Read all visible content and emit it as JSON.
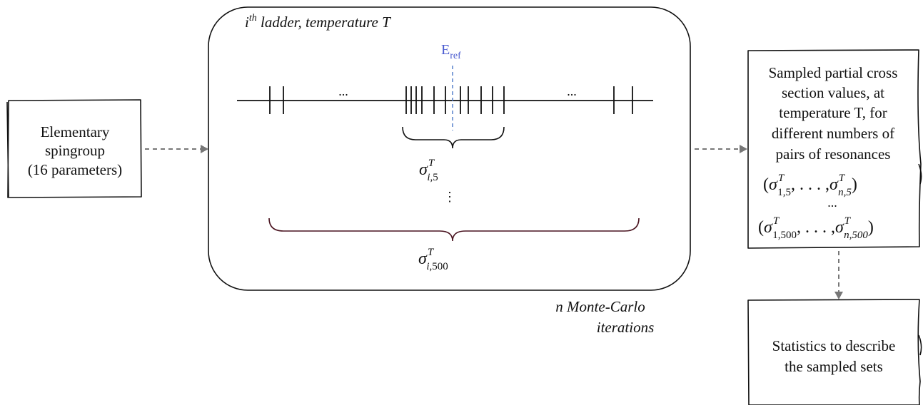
{
  "left_box": {
    "lines": [
      "Elementary",
      "spingroup",
      "(16 parameters)"
    ]
  },
  "ladder_box": {
    "title_i": "i",
    "title_sup": "th",
    "title_rest": " ladder, temperature T",
    "e_ref_main": "E",
    "e_ref_sub": "ref",
    "ellipsis_left": "...",
    "ellipsis_right": "...",
    "vertical_dots": "⋮",
    "sigma_small": {
      "sym": "σ",
      "sup": "T",
      "sub_i": "i",
      "sub_rest": ",5"
    },
    "sigma_large": {
      "sym": "σ",
      "sup": "T",
      "sub_i": "i",
      "sub_rest": ",500"
    }
  },
  "monte_carlo_label": [
    "n Monte-Carlo",
    "iterations"
  ],
  "right_box": {
    "lines": [
      "Sampled partial cross",
      "section values, at",
      "temperature T, for",
      "different numbers of",
      "pairs of resonances"
    ],
    "tuple_1": {
      "open": "(",
      "s1_sub": "1,5",
      "mid": ", . . . ,",
      "sn_sub": "n,5",
      "close": ")"
    },
    "ellipsis": "...",
    "tuple_2": {
      "open": "(",
      "s1_sub": "1,500",
      "mid": ", . . . ,",
      "sn_sub": "n,500",
      "close": ")"
    },
    "sigma": "σ",
    "sup": "T"
  },
  "stats_box": {
    "lines": [
      "Statistics to describe",
      "the sampled sets"
    ]
  },
  "colors": {
    "e_ref": "#4a5bd0",
    "ref_line": "#4a78c8",
    "arrow": "#777777",
    "large_brace": "#4a1420"
  }
}
